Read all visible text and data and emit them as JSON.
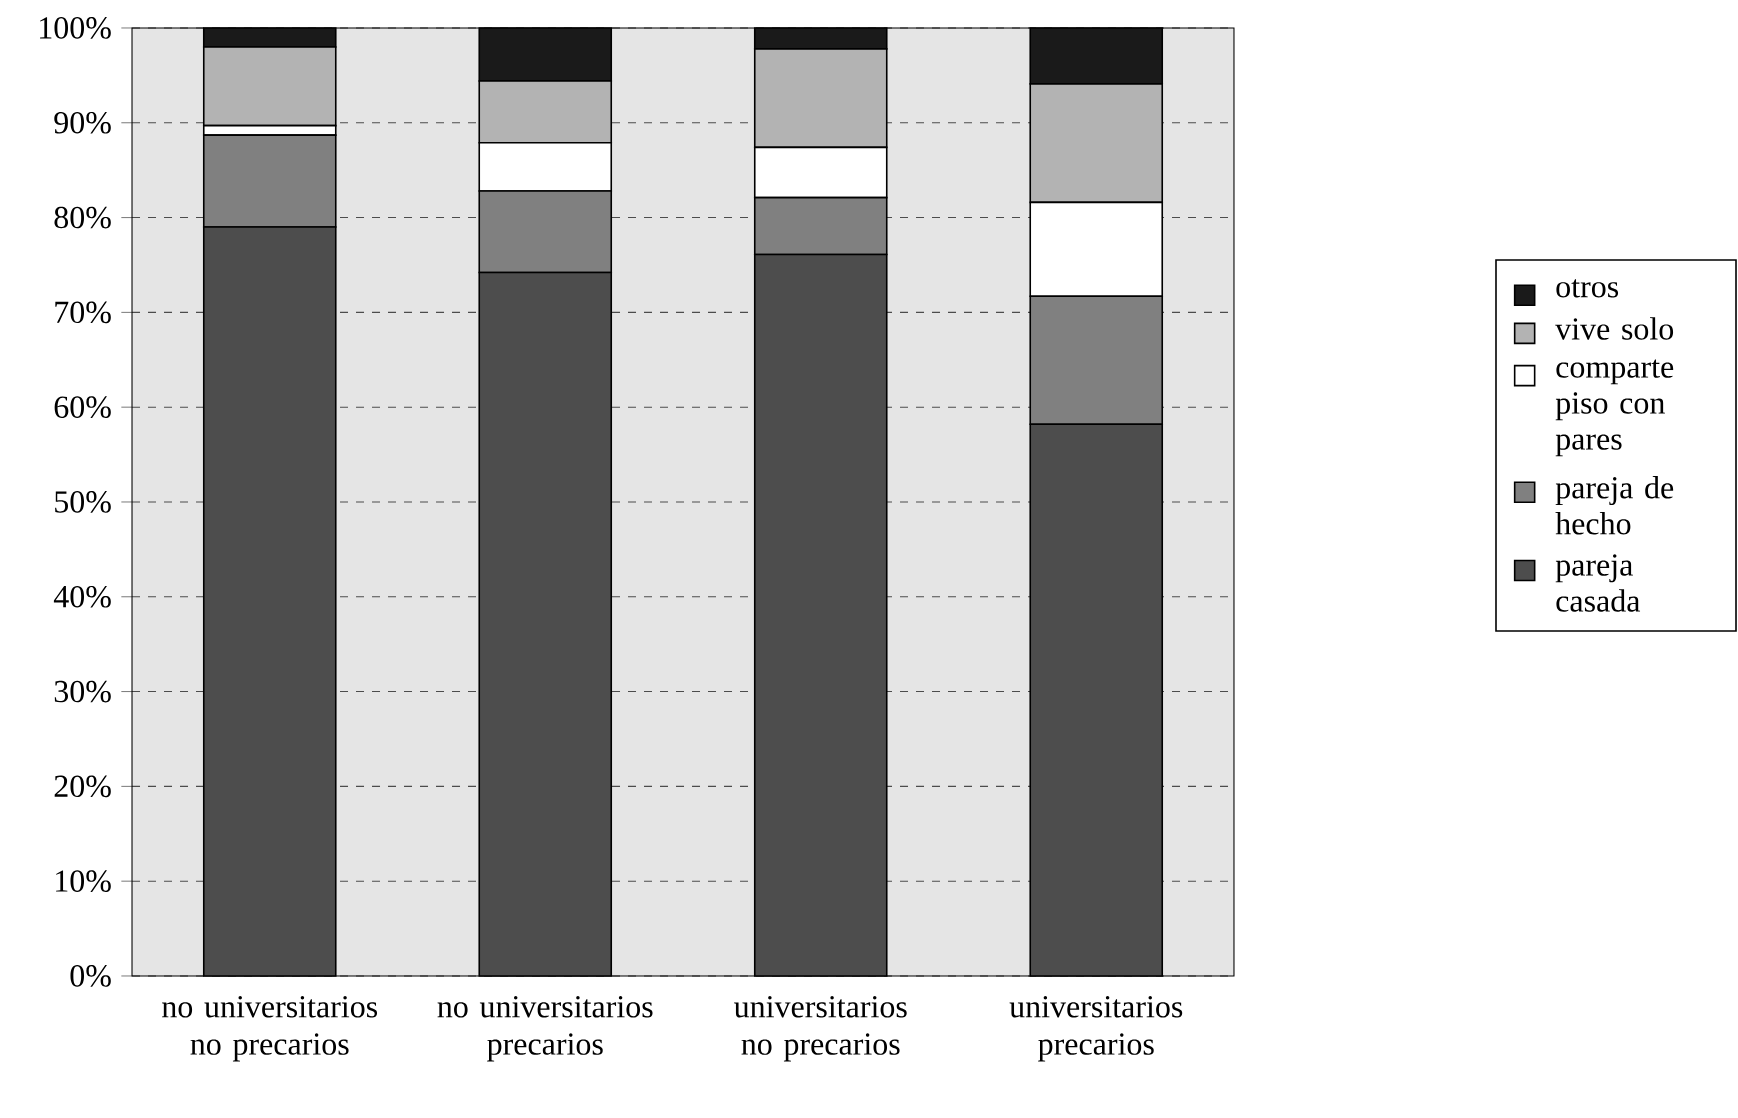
{
  "chart_data": {
    "type": "bar",
    "stacked": true,
    "categories": [
      "no universitarios no precarios",
      "no universitarios precarios",
      "universitarios no precarios",
      "universitarios precarios"
    ],
    "series": [
      {
        "name": "pareja casada",
        "color": "#4d4d4d",
        "values": [
          79.0,
          74.2,
          76.1,
          58.2
        ]
      },
      {
        "name": "pareja de hecho",
        "color": "#808080",
        "values": [
          9.7,
          8.6,
          6.0,
          13.5
        ]
      },
      {
        "name": "comparte piso con pares",
        "color": "#ffffff",
        "values": [
          1.0,
          5.1,
          5.3,
          9.9
        ]
      },
      {
        "name": "vive solo",
        "color": "#b3b3b3",
        "values": [
          8.3,
          6.5,
          10.4,
          12.5
        ]
      },
      {
        "name": "otros",
        "color": "#1a1a1a",
        "values": [
          2.0,
          5.6,
          2.2,
          5.9
        ]
      }
    ],
    "ylim": [
      0,
      100
    ],
    "yticks": [
      {
        "value": 0,
        "label": "0%"
      },
      {
        "value": 10,
        "label": "10%"
      },
      {
        "value": 20,
        "label": "20%"
      },
      {
        "value": 30,
        "label": "30%"
      },
      {
        "value": 40,
        "label": "40%"
      },
      {
        "value": 50,
        "label": "50%"
      },
      {
        "value": 60,
        "label": "60%"
      },
      {
        "value": 70,
        "label": "70%"
      },
      {
        "value": 80,
        "label": "80%"
      },
      {
        "value": 90,
        "label": "90%"
      },
      {
        "value": 100,
        "label": "100%"
      }
    ],
    "grid": "y",
    "legend": "right"
  }
}
